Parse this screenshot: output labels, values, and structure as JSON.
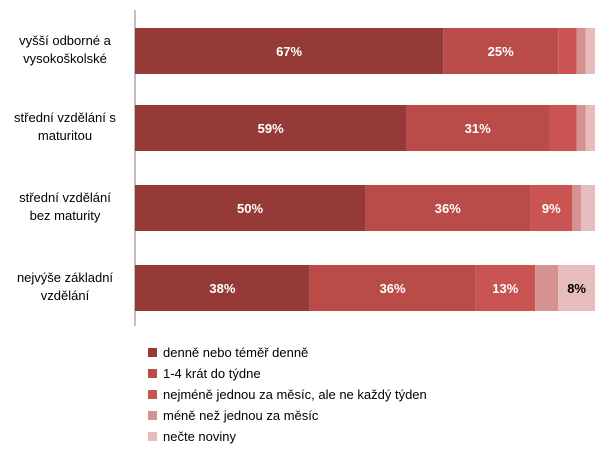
{
  "chart_data": {
    "type": "bar",
    "orientation": "horizontal",
    "stacked": true,
    "categories": [
      "vyšší odborné a vysokoškolské",
      "střední vzdělání s maturitou",
      "střední vzdělání bez maturity",
      "nejvýše základní vzdělání"
    ],
    "category_lines": [
      [
        "vyšší odborné a",
        "vysokoškolské"
      ],
      [
        "střední vzdělání s",
        "maturitou"
      ],
      [
        "střední vzdělání",
        "bez maturity"
      ],
      [
        "nejvýše základní",
        "vzdělání"
      ]
    ],
    "series": [
      {
        "name": "denně nebo téměř denně",
        "color": "#963a38",
        "values": [
          67,
          59,
          50,
          38
        ],
        "labels": [
          "67%",
          "59%",
          "50%",
          "38%"
        ]
      },
      {
        "name": "1-4 krát do týdne",
        "color": "#b94b48",
        "values": [
          25,
          31,
          36,
          36
        ],
        "labels": [
          "25%",
          "31%",
          "36%",
          "36%"
        ]
      },
      {
        "name": "nejméně jednou za měsíc, ale ne každý týden",
        "color": "#c95451",
        "values": [
          4,
          6,
          9,
          13
        ],
        "labels": [
          "",
          "",
          "9%",
          "13%"
        ]
      },
      {
        "name": "méně než jednou za měsíc",
        "color": "#d69290",
        "values": [
          2,
          2,
          2,
          5
        ],
        "labels": [
          "",
          "",
          "",
          ""
        ]
      },
      {
        "name": "nečte noviny",
        "color": "#e6bcbd",
        "values": [
          2,
          2,
          3,
          8
        ],
        "labels": [
          "",
          "",
          "",
          "8%"
        ]
      }
    ],
    "xlim": [
      0,
      100
    ],
    "legend_position": "bottom",
    "grid": false
  }
}
